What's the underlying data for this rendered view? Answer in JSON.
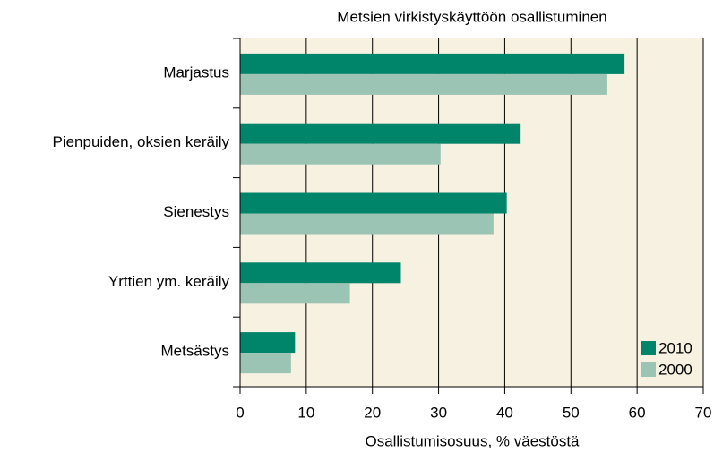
{
  "chart_data": {
    "type": "bar",
    "orientation": "horizontal",
    "title": "Metsien virkistyskäyttöön osallistuminen",
    "x_label": "Osallistumisosuus, % väestöstä",
    "categories": [
      "Marjastus",
      "Pienpuiden, oksien keräily",
      "Sienestys",
      "Yrttien ym. keräily",
      "Metsästys"
    ],
    "series": [
      {
        "name": "2010",
        "color": "#00846a",
        "values": [
          58.1,
          42.4,
          40.3,
          24.3,
          8.3
        ]
      },
      {
        "name": "2000",
        "color": "#9cc4b4",
        "values": [
          55.5,
          30.3,
          38.3,
          16.6,
          7.7
        ]
      }
    ],
    "xlim": [
      0,
      70
    ],
    "xticks": [
      0,
      10,
      20,
      30,
      40,
      50,
      60,
      70
    ],
    "grid": true,
    "legend": "lower right",
    "background": "#f6f1e1"
  }
}
